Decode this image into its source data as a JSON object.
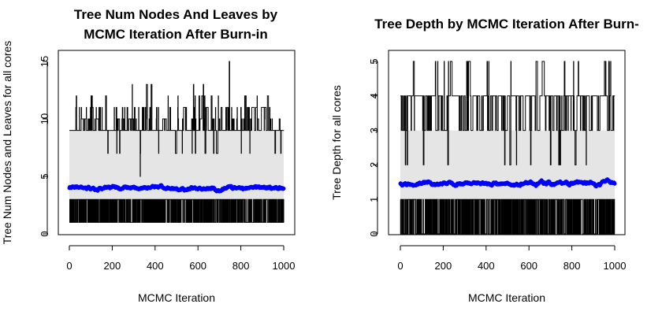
{
  "colors": {
    "background": "#ffffff",
    "band": "#e5e5e5",
    "trace": "#000000",
    "mean": "#0000ff"
  },
  "chart_data": [
    {
      "type": "line",
      "title": [
        "Tree Num Nodes And Leaves by",
        "MCMC Iteration After Burn-in"
      ],
      "xlabel": "MCMC Iteration",
      "ylabel": "Tree Num Nodes and Leaves for all cores",
      "xlim": [
        0,
        1000
      ],
      "ylim": [
        0,
        15
      ],
      "xticks": [
        0,
        200,
        400,
        600,
        800,
        1000
      ],
      "yticks": [
        0,
        5,
        10,
        15
      ],
      "grid": false,
      "series": [
        {
          "role": "max",
          "color": "#000000",
          "base": 9,
          "values_observed": [
            7,
            9,
            10,
            11,
            12,
            13,
            15
          ],
          "peak": {
            "x": 745,
            "y": 15
          }
        },
        {
          "role": "band",
          "color": "#e5e5e5",
          "y_range": [
            1,
            9
          ]
        },
        {
          "role": "mean",
          "color": "#0000ff",
          "approx_range": [
            3.7,
            4.5
          ],
          "mean": 4.0
        },
        {
          "role": "min",
          "color": "#000000",
          "values_observed": [
            1,
            3
          ]
        }
      ]
    },
    {
      "type": "line",
      "title": [
        "Tree Depth by MCMC Iteration After Burn-"
      ],
      "xlabel": "MCMC Iteration",
      "ylabel": "Tree Depth for all cores",
      "xlim": [
        0,
        1000
      ],
      "ylim": [
        0,
        5
      ],
      "xticks": [
        0,
        200,
        400,
        600,
        800,
        1000
      ],
      "yticks": [
        0,
        1,
        2,
        3,
        4,
        5
      ],
      "grid": false,
      "series": [
        {
          "role": "max",
          "color": "#000000",
          "base": 4,
          "values_observed": [
            2,
            3,
            4,
            5
          ]
        },
        {
          "role": "band",
          "color": "#e5e5e5",
          "y_range": [
            1,
            3
          ]
        },
        {
          "role": "mean",
          "color": "#0000ff",
          "approx_range": [
            1.3,
            1.7
          ],
          "mean": 1.45
        },
        {
          "role": "min",
          "color": "#000000",
          "values_observed": [
            0,
            1
          ]
        }
      ]
    }
  ]
}
